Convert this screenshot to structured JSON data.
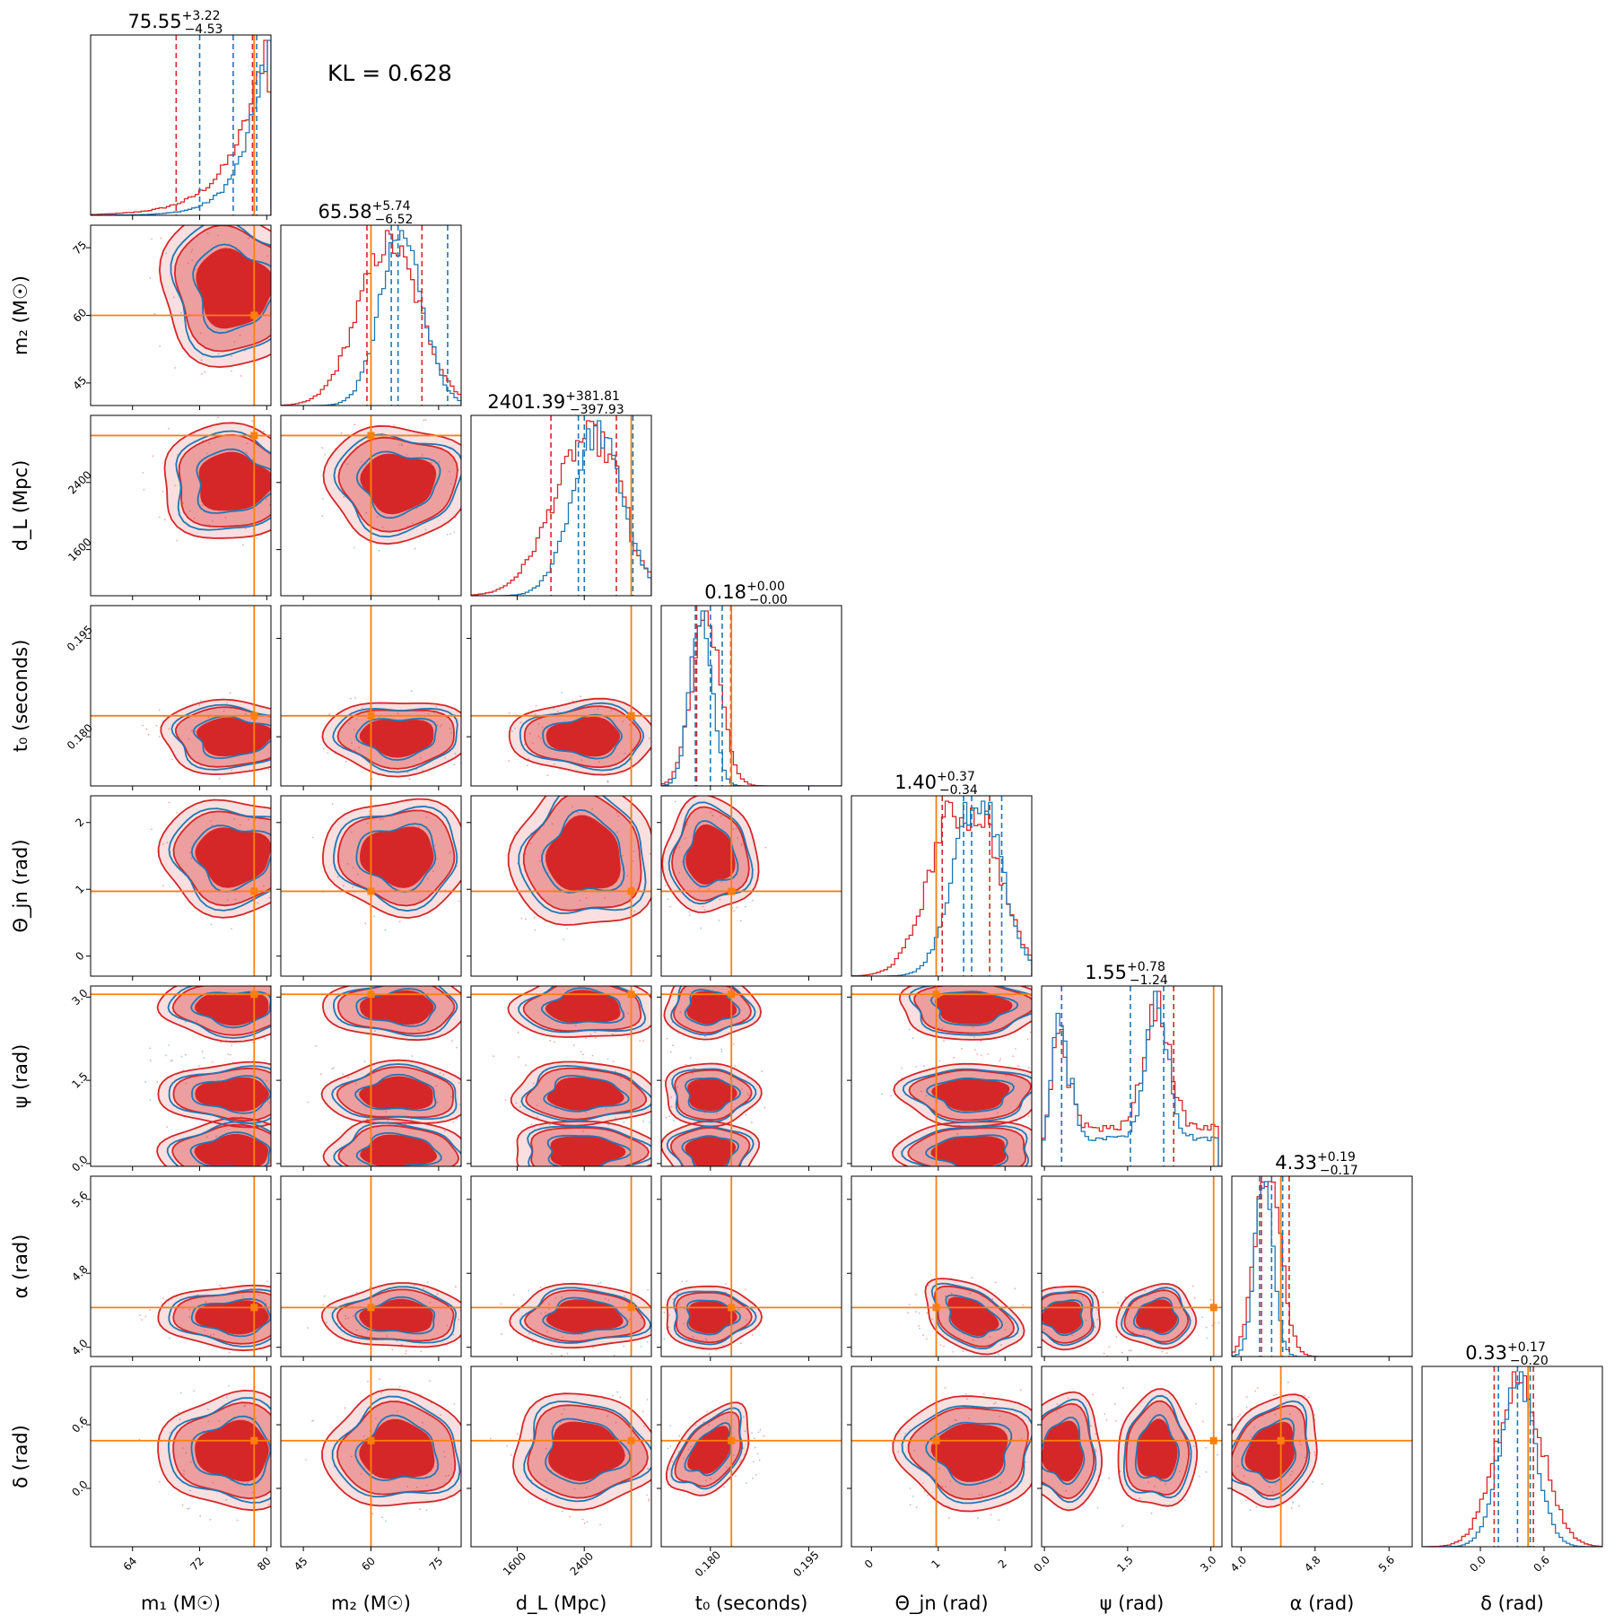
{
  "chart_data": {
    "type": "corner",
    "annotation": "KL = 0.628",
    "colors": {
      "series_a": "#d62728",
      "series_b": "#1f77b4",
      "truth": "#ff7f0e"
    },
    "parameters": [
      {
        "key": "m1",
        "label": "m₁ (M☉)",
        "range": [
          59,
          80.5
        ],
        "ticks": [
          64,
          72,
          80
        ],
        "tick_labels": [
          "64",
          "72",
          "80"
        ],
        "truth": 78.5,
        "title": "75.55",
        "plus": "+3.22",
        "minus": "−4.53",
        "center": 76.0,
        "red_q": [
          69.2,
          78.3
        ],
        "blue_q": [
          72.0,
          78.8
        ]
      },
      {
        "key": "m2",
        "label": "m₂ (M☉)",
        "range": [
          40,
          80
        ],
        "ticks": [
          45,
          60,
          75
        ],
        "tick_labels": [
          "45",
          "60",
          "75"
        ],
        "truth": 60,
        "title": "65.58",
        "plus": "+5.74",
        "minus": "−6.52",
        "center": 66.0,
        "red_q": [
          59.1,
          71.3
        ],
        "blue_q": [
          64.5,
          77.0
        ]
      },
      {
        "key": "dL",
        "label": "d_L (Mpc)",
        "range": [
          1050,
          3200
        ],
        "ticks": [
          1600,
          2400
        ],
        "tick_labels": [
          "1600",
          "2400"
        ],
        "truth": 2960,
        "title": "2401.39",
        "plus": "+381.81",
        "minus": "−397.93",
        "center": 2401,
        "red_q": [
          2003,
          2783
        ],
        "blue_q": [
          2330,
          2980
        ]
      },
      {
        "key": "t0",
        "label": "t₀ (seconds)",
        "range": [
          0.1725,
          0.2
        ],
        "ticks": [
          0.18,
          0.195
        ],
        "tick_labels": [
          "0.180",
          "0.195"
        ],
        "truth": 0.1832,
        "title": "0.18",
        "plus": "+0.00",
        "minus": "−0.00",
        "center": 0.18,
        "red_q": [
          0.1779,
          0.1831
        ],
        "blue_q": [
          0.1777,
          0.1818
        ]
      },
      {
        "key": "theta",
        "label": "Θ_jn (rad)",
        "range": [
          -0.3,
          2.4
        ],
        "ticks": [
          0,
          1,
          2
        ],
        "tick_labels": [
          "0",
          "1",
          "2"
        ],
        "truth": 0.97,
        "title": "1.40",
        "plus": "+0.37",
        "minus": "−0.34",
        "center": 1.5,
        "red_q": [
          1.06,
          1.77
        ],
        "blue_q": [
          1.38,
          1.95
        ]
      },
      {
        "key": "psi",
        "label": "ψ (rad)",
        "range": [
          -0.05,
          3.2
        ],
        "ticks": [
          0,
          1.5,
          3
        ],
        "tick_labels": [
          "0.0",
          "1.5",
          "3.0"
        ],
        "truth": 3.05,
        "title": "1.55",
        "plus": "+0.78",
        "minus": "−1.24",
        "center": 1.55,
        "red_q": [
          0.31,
          2.33
        ],
        "blue_q": [
          0.31,
          2.15
        ]
      },
      {
        "key": "alpha",
        "label": "α (rad)",
        "range": [
          3.9,
          5.85
        ],
        "ticks": [
          4.0,
          4.8,
          5.6
        ],
        "tick_labels": [
          "4.0",
          "4.8",
          "5.6"
        ],
        "truth": 4.43,
        "title": "4.33",
        "plus": "+0.19",
        "minus": "−0.17",
        "center": 4.33,
        "red_q": [
          4.22,
          4.52
        ],
        "blue_q": [
          4.2,
          4.45
        ]
      },
      {
        "key": "delta",
        "label": "δ (rad)",
        "range": [
          -0.55,
          1.15
        ],
        "ticks": [
          0,
          0.6
        ],
        "tick_labels": [
          "0.0",
          "0.6"
        ],
        "truth": 0.45,
        "title": "0.33",
        "plus": "+0.17",
        "minus": "−0.20",
        "center": 0.35,
        "red_q": [
          0.13,
          0.5
        ],
        "blue_q": [
          0.17,
          0.47
        ]
      }
    ],
    "series": [
      {
        "color": "red",
        "style": "filled 2D credible contours with histograms"
      },
      {
        "color": "blue",
        "style": "line 2D credible contours with histograms"
      }
    ]
  }
}
